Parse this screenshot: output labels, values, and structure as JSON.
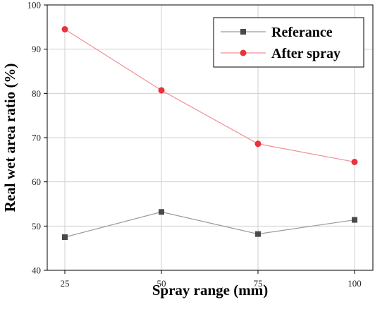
{
  "chart_data": {
    "type": "line",
    "title": "",
    "xlabel": "Spray range (mm)",
    "ylabel": "Real wet area ratio (%)",
    "x": [
      25,
      50,
      75,
      100
    ],
    "x_ticks": [
      "25",
      "50",
      "75",
      "100"
    ],
    "ylim": [
      40,
      100
    ],
    "y_ticks": [
      "40",
      "50",
      "60",
      "70",
      "80",
      "90",
      "100"
    ],
    "grid": true,
    "legend_position": "top-right",
    "series": [
      {
        "name": "Referance",
        "marker": "square",
        "color": "#4a4a4a",
        "line_color": "#9a9a9a",
        "values": [
          47.5,
          53.2,
          48.2,
          51.4
        ]
      },
      {
        "name": "After spray",
        "marker": "circle",
        "color": "#e8323c",
        "line_color": "#f28e94",
        "values": [
          94.5,
          80.7,
          68.6,
          64.5
        ]
      }
    ]
  }
}
